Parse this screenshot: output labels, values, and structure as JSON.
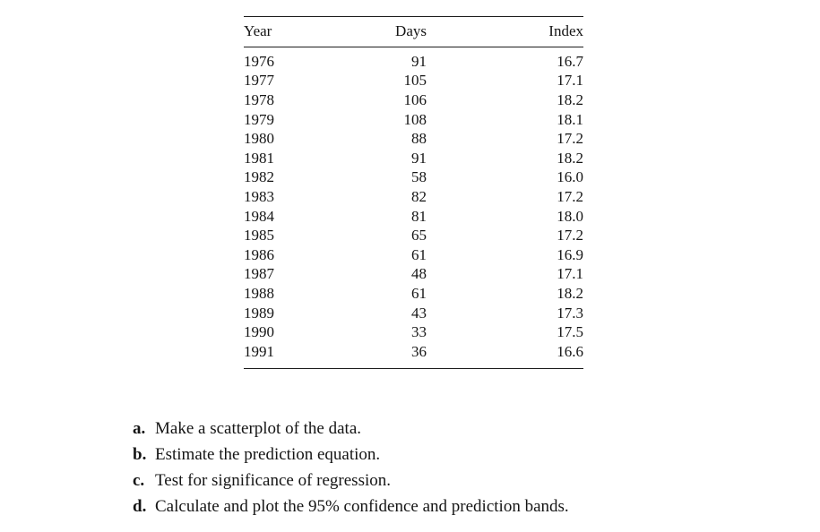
{
  "table": {
    "columns": [
      "Year",
      "Days",
      "Index"
    ],
    "rows": [
      [
        "1976",
        "91",
        "16.7"
      ],
      [
        "1977",
        "105",
        "17.1"
      ],
      [
        "1978",
        "106",
        "18.2"
      ],
      [
        "1979",
        "108",
        "18.1"
      ],
      [
        "1980",
        "88",
        "17.2"
      ],
      [
        "1981",
        "91",
        "18.2"
      ],
      [
        "1982",
        "58",
        "16.0"
      ],
      [
        "1983",
        "82",
        "17.2"
      ],
      [
        "1984",
        "81",
        "18.0"
      ],
      [
        "1985",
        "65",
        "17.2"
      ],
      [
        "1986",
        "61",
        "16.9"
      ],
      [
        "1987",
        "48",
        "17.1"
      ],
      [
        "1988",
        "61",
        "18.2"
      ],
      [
        "1989",
        "43",
        "17.3"
      ],
      [
        "1990",
        "33",
        "17.5"
      ],
      [
        "1991",
        "36",
        "16.6"
      ]
    ]
  },
  "questions": [
    {
      "label": "a.",
      "text": "Make a scatterplot of the data."
    },
    {
      "label": "b.",
      "text": "Estimate the prediction equation."
    },
    {
      "label": "c.",
      "text": "Test for significance of regression."
    },
    {
      "label": "d.",
      "text": "Calculate and plot the 95% confidence and prediction bands."
    }
  ],
  "colors": {
    "text": "#151515",
    "rule": "#1c1c1c",
    "background": "#ffffff"
  }
}
